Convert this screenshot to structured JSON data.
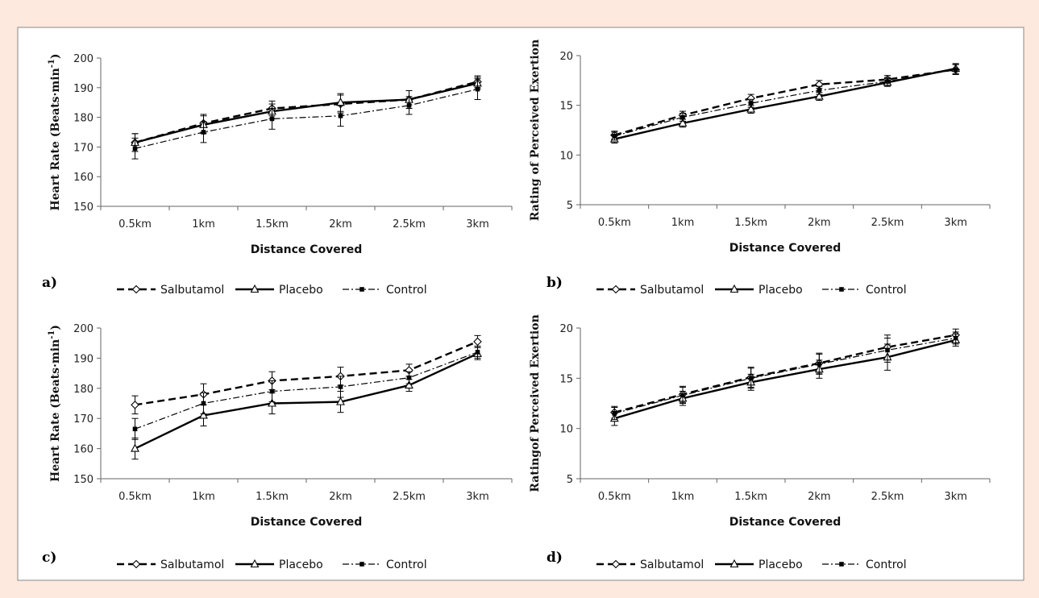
{
  "colors": {
    "background": "#fde9dd",
    "panel": "#ffffff",
    "line": "#000000",
    "axis": "#555555"
  },
  "chart_data": [
    {
      "panel_label": "a)",
      "type": "line",
      "categories": [
        "0.5km",
        "1km",
        "1.5km",
        "2km",
        "2.5km",
        "3km"
      ],
      "xlabel": "Distance Covered",
      "ylabel": "Heart Rate (Beats·min",
      "ylabel_sup": "-1",
      "ylabel_close": ")",
      "ylim": [
        150,
        200
      ],
      "yticks": [
        150,
        160,
        170,
        180,
        190,
        200
      ],
      "series": [
        {
          "name": "Salbutamol",
          "values": [
            171.5,
            178,
            183,
            184.5,
            186,
            192
          ],
          "errors": [
            3,
            3,
            2.5,
            3,
            3,
            2
          ]
        },
        {
          "name": "Placebo",
          "values": [
            171.5,
            177.5,
            182,
            185,
            186,
            191.5
          ],
          "errors": [
            3,
            3,
            2.5,
            3,
            3,
            2
          ]
        },
        {
          "name": "Control",
          "values": [
            169.5,
            175,
            179.5,
            180.5,
            184,
            189.5
          ],
          "errors": [
            3.5,
            3.5,
            3.5,
            3.5,
            3,
            3.5
          ]
        }
      ]
    },
    {
      "panel_label": "b)",
      "type": "line",
      "categories": [
        "0.5km",
        "1km",
        "1.5km",
        "2km",
        "2.5km",
        "3km"
      ],
      "xlabel": "Distance Covered",
      "ylabel": "Rating of Perceived Exertion",
      "ylim": [
        5,
        20
      ],
      "yticks": [
        5,
        10,
        15,
        20
      ],
      "series": [
        {
          "name": "Salbutamol",
          "values": [
            12,
            14,
            15.7,
            17.1,
            17.6,
            18.6
          ],
          "errors": [
            0.4,
            0.4,
            0.4,
            0.4,
            0.4,
            0.5
          ]
        },
        {
          "name": "Placebo",
          "values": [
            11.6,
            13.2,
            14.6,
            15.9,
            17.3,
            18.7
          ],
          "errors": [
            0.4,
            0.4,
            0.4,
            0.4,
            0.4,
            0.5
          ]
        },
        {
          "name": "Control",
          "values": [
            11.9,
            13.8,
            15.2,
            16.5,
            17.4,
            18.6
          ],
          "errors": [
            0.4,
            0.4,
            0.4,
            0.4,
            0.4,
            0.5
          ]
        }
      ]
    },
    {
      "panel_label": "c)",
      "type": "line",
      "categories": [
        "0.5km",
        "1km",
        "1.5km",
        "2km",
        "2.5km",
        "3km"
      ],
      "xlabel": "Distance Covered",
      "ylabel": "Heart Rate (Beats·min",
      "ylabel_sup": "-1",
      "ylabel_close": ")",
      "ylim": [
        150,
        200
      ],
      "yticks": [
        150,
        160,
        170,
        180,
        190,
        200
      ],
      "series": [
        {
          "name": "Salbutamol",
          "values": [
            174.5,
            178,
            182.5,
            184,
            186,
            195.5
          ],
          "errors": [
            3,
            3.5,
            3,
            3,
            2,
            2
          ]
        },
        {
          "name": "Placebo",
          "values": [
            160,
            171,
            175,
            175.5,
            181,
            191.5
          ],
          "errors": [
            3.5,
            3.5,
            3.5,
            3.5,
            2,
            2
          ]
        },
        {
          "name": "Control",
          "values": [
            166.5,
            175,
            179,
            180.5,
            183.5,
            192
          ],
          "errors": [
            3.5,
            3.5,
            3.5,
            3.5,
            2,
            2
          ]
        }
      ]
    },
    {
      "panel_label": "d)",
      "type": "line",
      "categories": [
        "0.5km",
        "1km",
        "1.5km",
        "2km",
        "2.5km",
        "3km"
      ],
      "xlabel": "Distance Covered",
      "ylabel": "Ratingof Perceived Exertion",
      "ylim": [
        5,
        20
      ],
      "yticks": [
        5,
        10,
        15,
        20
      ],
      "series": [
        {
          "name": "Salbutamol",
          "values": [
            11.6,
            13.4,
            15.1,
            16.5,
            18.1,
            19.3
          ],
          "errors": [
            0.6,
            0.8,
            1,
            1,
            1.2,
            0.6
          ]
        },
        {
          "name": "Placebo",
          "values": [
            11,
            13,
            14.6,
            15.9,
            17.1,
            18.8
          ],
          "errors": [
            0.7,
            0.7,
            0.8,
            0.9,
            1.3,
            0.6
          ]
        },
        {
          "name": "Control",
          "values": [
            11.5,
            13.3,
            15,
            16.4,
            17.8,
            19
          ],
          "errors": [
            0.6,
            0.8,
            1,
            1,
            1.2,
            0.6
          ]
        }
      ]
    }
  ],
  "legend": [
    {
      "name": "Salbutamol",
      "style": "dashed",
      "marker": "diamond"
    },
    {
      "name": "Placebo",
      "style": "solid",
      "marker": "triangle"
    },
    {
      "name": "Control",
      "style": "dashdot",
      "marker": "square"
    }
  ]
}
